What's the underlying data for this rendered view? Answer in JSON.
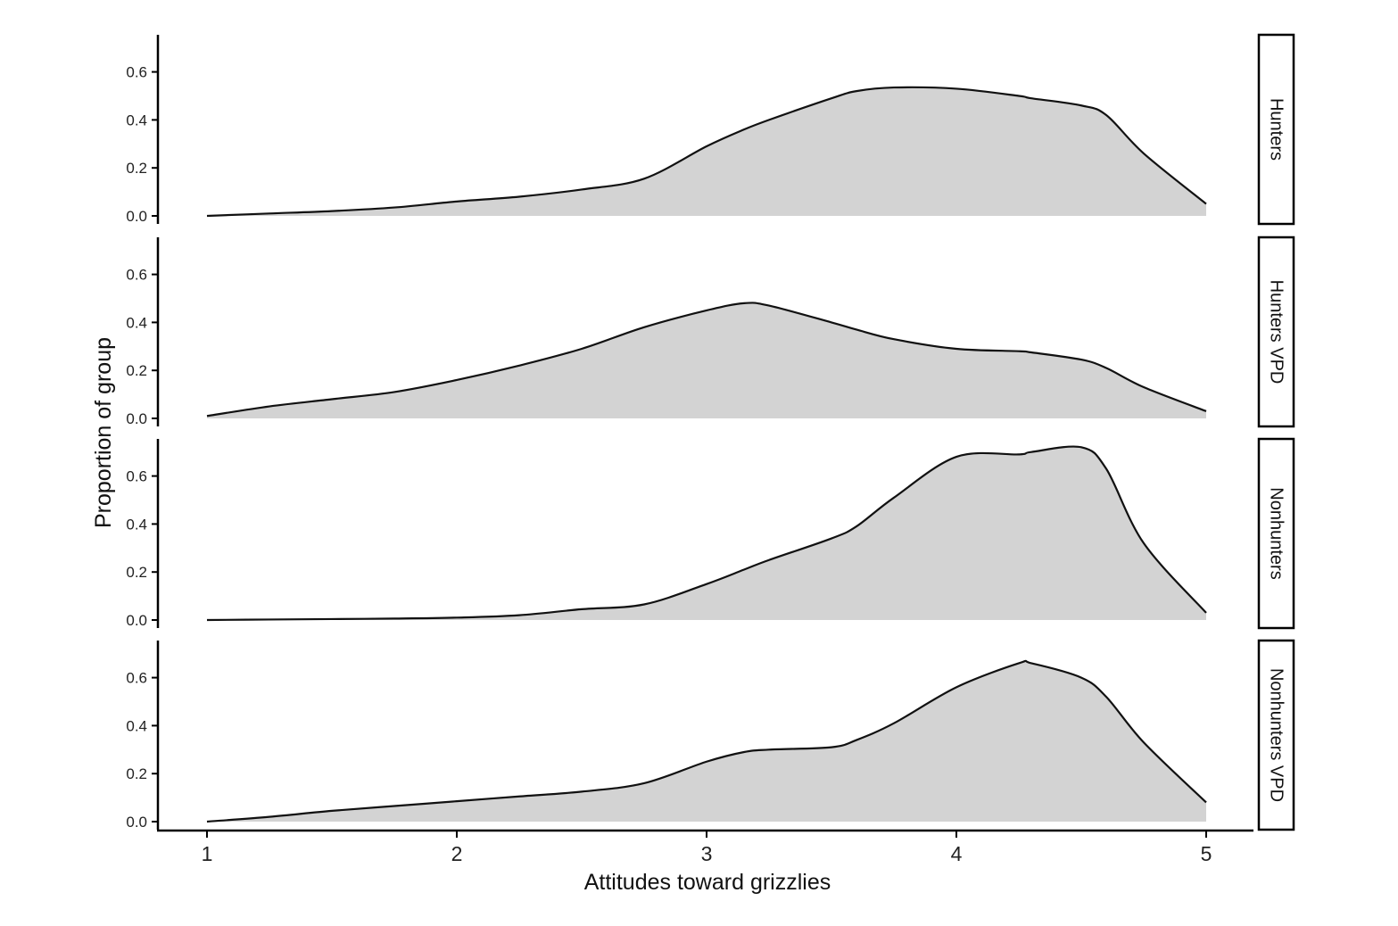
{
  "chart_data": {
    "type": "area",
    "xlabel": "Attitudes toward grizzlies",
    "ylabel": "Proportion of group",
    "xlim": [
      1,
      5
    ],
    "ylim": [
      0,
      0.75
    ],
    "x_ticks": [
      "1",
      "2",
      "3",
      "4",
      "5"
    ],
    "y_ticks": [
      "0.0",
      "0.2",
      "0.4",
      "0.6"
    ],
    "grid": false,
    "fill_color": "#d3d3d3",
    "line_color": "#111111",
    "x": [
      1.0,
      1.25,
      1.5,
      1.75,
      2.0,
      2.25,
      2.5,
      2.75,
      3.0,
      3.15,
      3.25,
      3.5,
      3.6,
      3.75,
      4.0,
      4.25,
      4.3,
      4.5,
      4.6,
      4.75,
      5.0
    ],
    "panels": [
      {
        "name": "Hunters",
        "values": [
          0.0,
          0.01,
          0.02,
          0.035,
          0.06,
          0.08,
          0.11,
          0.155,
          0.29,
          0.36,
          0.4,
          0.49,
          0.52,
          0.535,
          0.53,
          0.5,
          0.49,
          0.46,
          0.42,
          0.26,
          0.05
        ]
      },
      {
        "name": "Hunters VPD",
        "values": [
          0.01,
          0.05,
          0.08,
          0.11,
          0.16,
          0.22,
          0.29,
          0.38,
          0.45,
          0.48,
          0.47,
          0.4,
          0.37,
          0.33,
          0.29,
          0.28,
          0.275,
          0.245,
          0.21,
          0.13,
          0.03
        ]
      },
      {
        "name": "Nonhunters",
        "values": [
          0.0,
          0.002,
          0.004,
          0.006,
          0.01,
          0.02,
          0.045,
          0.065,
          0.15,
          0.21,
          0.25,
          0.34,
          0.39,
          0.51,
          0.68,
          0.69,
          0.7,
          0.72,
          0.63,
          0.32,
          0.03
        ]
      },
      {
        "name": "Nonhunters VPD",
        "values": [
          0.0,
          0.02,
          0.045,
          0.065,
          0.085,
          0.105,
          0.125,
          0.16,
          0.25,
          0.29,
          0.3,
          0.31,
          0.34,
          0.41,
          0.56,
          0.66,
          0.66,
          0.6,
          0.52,
          0.33,
          0.08
        ]
      }
    ]
  }
}
